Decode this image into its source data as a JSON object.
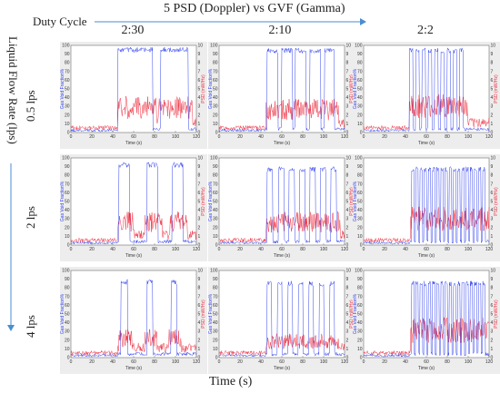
{
  "title": "5 PSD (Doppler) vs GVF (Gamma)",
  "duty_cycle_label": "Duty Cycle",
  "liquid_flow_label": "Liquid Flow Rate (lps)",
  "x_axis_label": "Time (s)",
  "colors": {
    "gvf": "#3344ee",
    "psd": "#ee3344",
    "arrow": "#4a8ed0",
    "panel_bg": "#ededed"
  },
  "columns": [
    "2:30",
    "2:10",
    "2:2"
  ],
  "rows": [
    "0.5 lps",
    "2 lps",
    "4 lps"
  ],
  "chart_data": {
    "type": "line",
    "panel_x_label": "Time (s)",
    "panel_y_left_label": "Gas Void Fraction%",
    "panel_y_right_label": "PSD (mW/Hz)",
    "xlim": [
      0,
      120
    ],
    "x_ticks": [
      0,
      20,
      40,
      60,
      80,
      100,
      120
    ],
    "y_left_lim": [
      0,
      100
    ],
    "y_left_ticks": [
      0,
      10,
      20,
      30,
      40,
      50,
      60,
      70,
      80,
      90,
      100
    ],
    "y_right_lim": [
      0,
      10
    ],
    "y_right_ticks": [
      0,
      1,
      2,
      3,
      4,
      5,
      6,
      7,
      8,
      9,
      10
    ],
    "series": [
      {
        "name": "Gas Void Fraction%",
        "axis": "left"
      },
      {
        "name": "PSD (mW/Hz)",
        "axis": "right"
      }
    ],
    "panels": [
      {
        "row": "0.5 lps",
        "col": "2:30",
        "gas_on_s": 45,
        "pulses": [
          [
            45,
            78
          ],
          [
            86,
            112
          ]
        ],
        "gvf_peak": 98,
        "psd_peak": 3.8
      },
      {
        "row": "0.5 lps",
        "col": "2:10",
        "gas_on_s": 45,
        "pulses": [
          [
            46,
            56
          ],
          [
            60,
            70
          ],
          [
            73,
            83
          ],
          [
            87,
            97
          ],
          [
            101,
            110
          ]
        ],
        "gvf_peak": 97,
        "psd_peak": 3.5
      },
      {
        "row": "0.5 lps",
        "col": "2:2",
        "gas_on_s": 44,
        "pulses": [
          [
            44,
            47
          ],
          [
            50,
            53
          ],
          [
            56,
            59
          ],
          [
            62,
            65
          ],
          [
            68,
            71
          ],
          [
            74,
            77
          ],
          [
            80,
            83
          ],
          [
            86,
            89
          ],
          [
            92,
            95
          ]
        ],
        "gvf_peak": 97,
        "psd_peak": 4.0
      },
      {
        "row": "2 lps",
        "col": "2:30",
        "gas_on_s": 45,
        "pulses": [
          [
            46,
            56
          ],
          [
            73,
            83
          ],
          [
            97,
            107
          ]
        ],
        "gvf_peak": 95,
        "psd_peak": 3.5
      },
      {
        "row": "2 lps",
        "col": "2:10",
        "gas_on_s": 45,
        "pulses": [
          [
            46,
            51
          ],
          [
            57,
            62
          ],
          [
            67,
            72
          ],
          [
            77,
            82
          ],
          [
            87,
            92
          ],
          [
            97,
            102
          ],
          [
            107,
            112
          ]
        ],
        "gvf_peak": 90,
        "psd_peak": 3.5
      },
      {
        "row": "2 lps",
        "col": "2:2",
        "gas_on_s": 45,
        "pulses": [
          [
            46,
            48
          ],
          [
            50,
            52
          ],
          [
            54,
            56
          ],
          [
            58,
            60
          ],
          [
            62,
            64
          ],
          [
            66,
            68
          ],
          [
            70,
            72
          ],
          [
            74,
            76
          ],
          [
            78,
            80
          ],
          [
            82,
            84
          ],
          [
            86,
            88
          ],
          [
            90,
            92
          ],
          [
            94,
            96
          ],
          [
            98,
            100
          ],
          [
            102,
            104
          ],
          [
            106,
            108
          ],
          [
            110,
            112
          ],
          [
            114,
            116
          ]
        ],
        "gvf_peak": 90,
        "psd_peak": 4.0
      },
      {
        "row": "4 lps",
        "col": "2:30",
        "gas_on_s": 45,
        "pulses": [
          [
            48,
            54
          ],
          [
            73,
            78
          ],
          [
            96,
            101
          ]
        ],
        "gvf_peak": 90,
        "psd_peak": 3.0
      },
      {
        "row": "4 lps",
        "col": "2:10",
        "gas_on_s": 45,
        "pulses": [
          [
            46,
            50
          ],
          [
            56,
            60
          ],
          [
            66,
            70
          ],
          [
            76,
            80
          ],
          [
            86,
            90
          ],
          [
            96,
            100
          ],
          [
            106,
            110
          ]
        ],
        "gvf_peak": 88,
        "psd_peak": 2.5
      },
      {
        "row": "4 lps",
        "col": "2:2",
        "gas_on_s": 45,
        "pulses": [
          [
            46,
            48
          ],
          [
            50,
            52
          ],
          [
            54,
            56
          ],
          [
            58,
            60
          ],
          [
            62,
            64
          ],
          [
            66,
            68
          ],
          [
            70,
            72
          ],
          [
            74,
            76
          ],
          [
            78,
            80
          ],
          [
            82,
            84
          ],
          [
            86,
            88
          ],
          [
            90,
            92
          ],
          [
            94,
            96
          ],
          [
            98,
            100
          ],
          [
            102,
            104
          ],
          [
            106,
            108
          ],
          [
            110,
            112
          ],
          [
            114,
            116
          ]
        ],
        "gvf_peak": 88,
        "psd_peak": 4.2
      }
    ]
  }
}
